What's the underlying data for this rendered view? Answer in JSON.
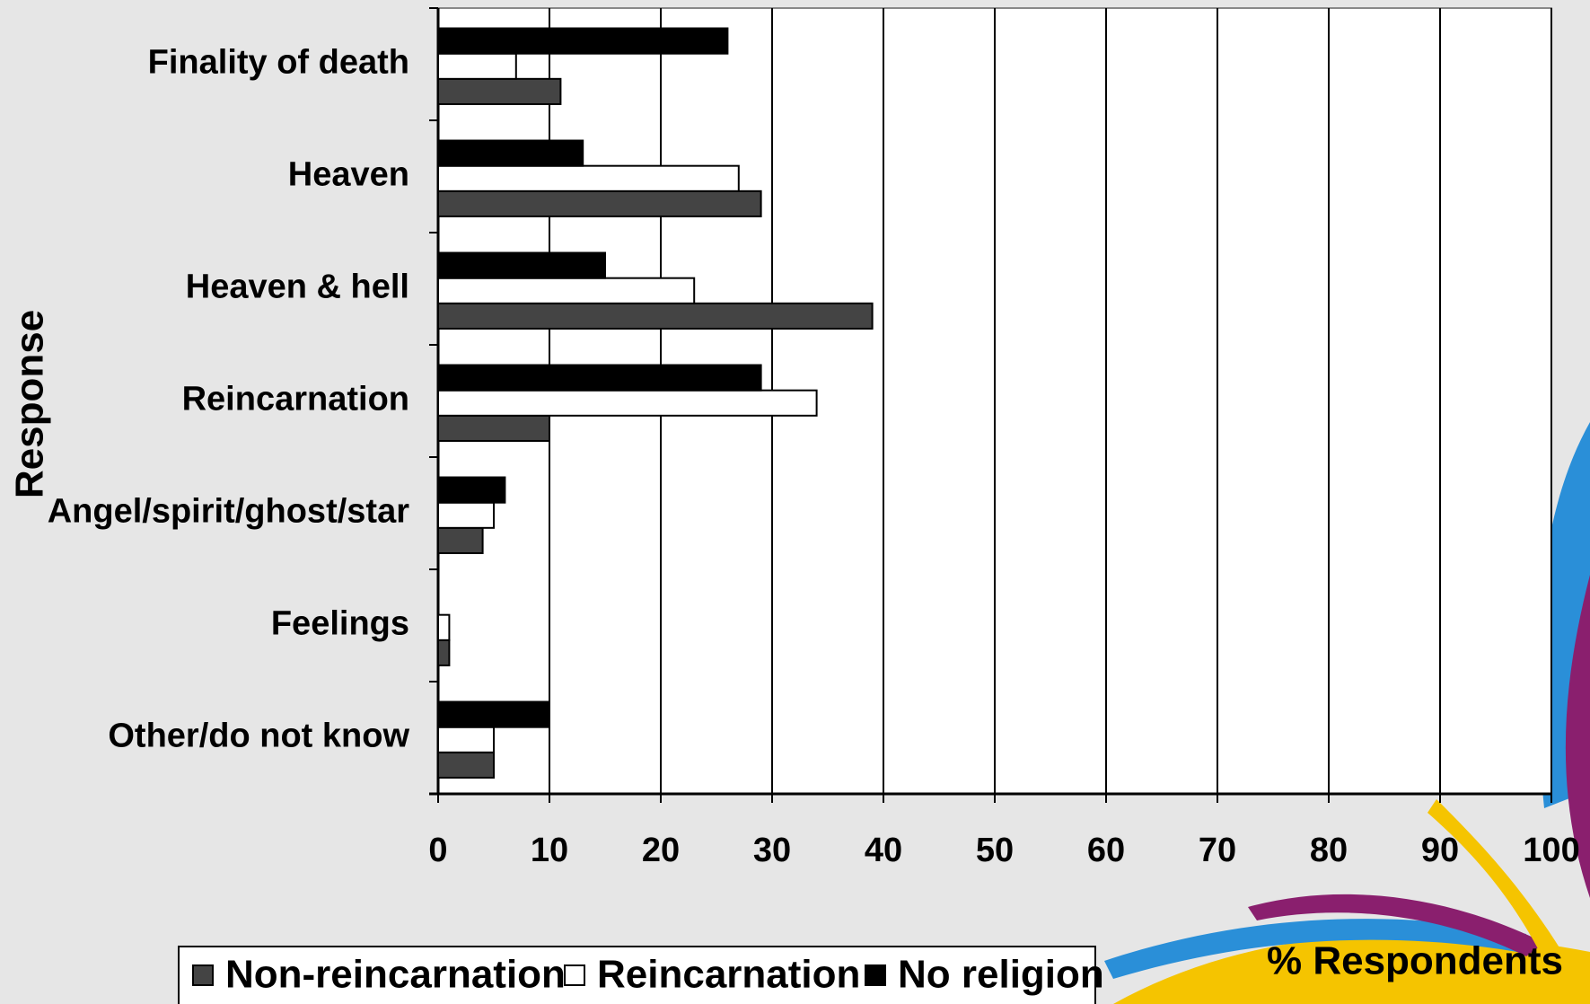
{
  "chart_data": {
    "type": "bar",
    "orientation": "horizontal",
    "y_label": "Response",
    "x_label": "% Respondents",
    "categories": [
      "Finality of death",
      "Heaven",
      "Heaven & hell",
      "Reincarnation",
      "Angel/spirit/ghost/star",
      "Feelings",
      "Other/do not know"
    ],
    "series": [
      {
        "name": "Non-reincarnation",
        "color": "#444444",
        "values": [
          11,
          29,
          39,
          10,
          4,
          1,
          5
        ]
      },
      {
        "name": "Reincarnation",
        "color": "#ffffff",
        "values": [
          7,
          27,
          23,
          34,
          5,
          1,
          5
        ]
      },
      {
        "name": "No religion",
        "color": "#000000",
        "values": [
          26,
          13,
          15,
          29,
          6,
          0,
          10
        ]
      }
    ],
    "xlim": [
      0,
      100
    ],
    "xticks": [
      0,
      10,
      20,
      30,
      40,
      50,
      60,
      70,
      80,
      90,
      100
    ],
    "grid": true
  }
}
